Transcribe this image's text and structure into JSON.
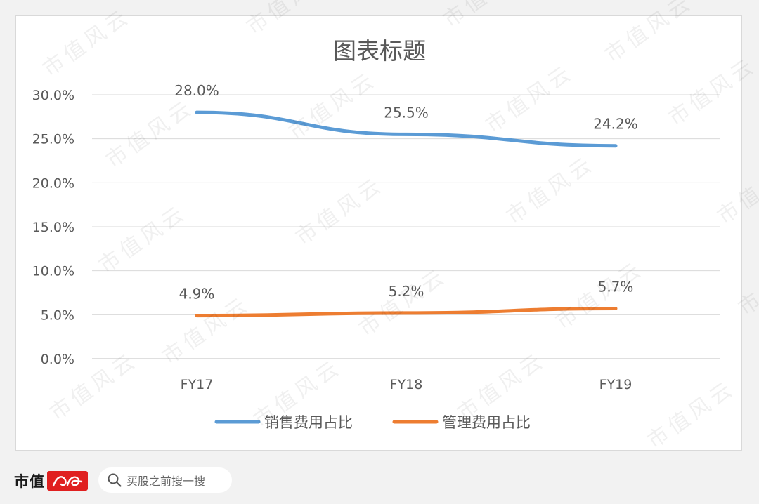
{
  "chart_data": {
    "type": "line",
    "title": "图表标题",
    "categories": [
      "FY17",
      "FY18",
      "FY19"
    ],
    "series": [
      {
        "name": "销售费用占比",
        "values": [
          28.0,
          25.5,
          24.2
        ],
        "labels": [
          "28.0%",
          "25.5%",
          "24.2%"
        ],
        "color": "#5b9bd5"
      },
      {
        "name": "管理费用占比",
        "values": [
          4.9,
          5.2,
          5.7
        ],
        "labels": [
          "4.9%",
          "5.2%",
          "5.7%"
        ],
        "color": "#ed7d31"
      }
    ],
    "yticks": [
      0,
      5,
      10,
      15,
      20,
      25,
      30
    ],
    "ytick_labels": [
      "0.0%",
      "5.0%",
      "10.0%",
      "15.0%",
      "20.0%",
      "25.0%",
      "30.0%"
    ],
    "ylim": [
      0,
      30
    ],
    "grid": true,
    "legend_position": "bottom",
    "axis_color": "#bfbfbf",
    "text_color": "#595959"
  },
  "footer": {
    "logo_text": "市值",
    "logo_seal": "风云",
    "search_text": "买股之前搜一搜"
  },
  "watermark_text": "市值风云"
}
